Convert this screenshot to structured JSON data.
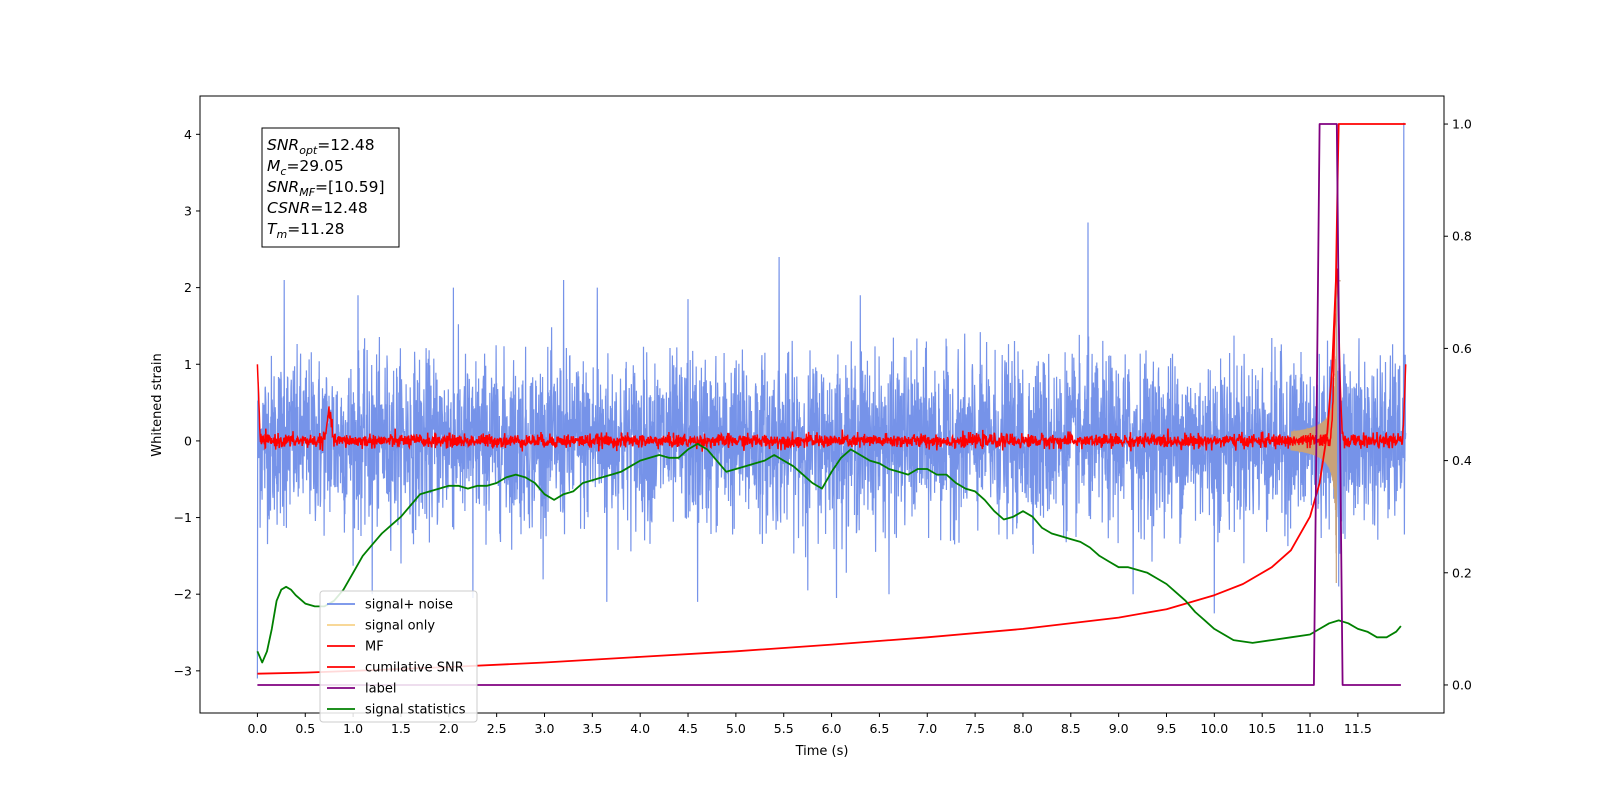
{
  "chart_data": {
    "type": "line",
    "xlabel": "Time (s)",
    "ylabel": "Whitened strain",
    "xlim": [
      -0.6,
      12.4
    ],
    "ylim": [
      -3.55,
      4.5
    ],
    "ylim_right": [
      -0.05,
      1.05
    ],
    "x_ticks": [
      0.0,
      0.5,
      1.0,
      1.5,
      2.0,
      2.5,
      3.0,
      3.5,
      4.0,
      4.5,
      5.0,
      5.5,
      6.0,
      6.5,
      7.0,
      7.5,
      8.0,
      8.5,
      9.0,
      9.5,
      10.0,
      10.5,
      11.0,
      11.5
    ],
    "x_tick_labels": [
      "0.0",
      "0.5",
      "1.0",
      "1.5",
      "2.0",
      "2.5",
      "3.0",
      "3.5",
      "4.0",
      "4.5",
      "5.0",
      "5.5",
      "6.0",
      "6.5",
      "7.0",
      "7.5",
      "8.0",
      "8.5",
      "9.0",
      "9.5",
      "10.0",
      "10.5",
      "11.0",
      "11.5"
    ],
    "y_ticks": [
      -3,
      -2,
      -1,
      0,
      1,
      2,
      3,
      4
    ],
    "y_tick_labels": [
      "−3",
      "−2",
      "−1",
      "0",
      "1",
      "2",
      "3",
      "4"
    ],
    "y_right_ticks": [
      0.0,
      0.2,
      0.4,
      0.6,
      0.8,
      1.0
    ],
    "y_right_tick_labels": [
      "0.0",
      "0.2",
      "0.4",
      "0.6",
      "0.8",
      "1.0"
    ],
    "legend_placement": "lower-left",
    "legend": [
      {
        "label": "signal+ noise",
        "color": "#6f8de8"
      },
      {
        "label": "signal only",
        "color": "#f7d38a"
      },
      {
        "label": "MF",
        "color": "#ff0000"
      },
      {
        "label": "cumilative SNR",
        "color": "#ff0000"
      },
      {
        "label": "label",
        "color": "#800080"
      },
      {
        "label": "signal statistics",
        "color": "#008000"
      }
    ],
    "annotation": {
      "lines": [
        {
          "sym": "SNR",
          "sub": "opt",
          "val": "=12.48"
        },
        {
          "sym": "M",
          "sub": "c",
          "val": "=29.05"
        },
        {
          "sym": "SNR",
          "sub": "MF",
          "val": "=[10.59]"
        },
        {
          "sym": "CSNR",
          "sub": "",
          "val": "=12.48"
        },
        {
          "sym": "T",
          "sub": "m",
          "val": "=11.28"
        }
      ]
    },
    "series": [
      {
        "name": "signal+ noise",
        "axis": "left",
        "color": "#6f8de8",
        "x_range": [
          0.0,
          12.0
        ],
        "envelope_upper": 1.1,
        "envelope_lower": -1.2,
        "peaks": [
          [
            0.28,
            2.1
          ],
          [
            1.05,
            1.9
          ],
          [
            2.05,
            2.0
          ],
          [
            3.2,
            2.1
          ],
          [
            3.55,
            2.0
          ],
          [
            4.5,
            1.85
          ],
          [
            5.45,
            2.4
          ],
          [
            6.3,
            1.9
          ],
          [
            8.68,
            2.85
          ],
          [
            11.28,
            2.25
          ],
          [
            11.98,
            4.15
          ]
        ],
        "troughs": [
          [
            0.0,
            -3.1
          ],
          [
            1.2,
            -2.0
          ],
          [
            2.25,
            -2.05
          ],
          [
            3.65,
            -2.1
          ],
          [
            4.6,
            -2.1
          ],
          [
            5.75,
            -1.95
          ],
          [
            6.05,
            -2.05
          ],
          [
            6.6,
            -2.0
          ],
          [
            9.15,
            -2.0
          ],
          [
            10.0,
            -2.25
          ],
          [
            11.3,
            -1.9
          ]
        ]
      },
      {
        "name": "signal only",
        "axis": "left",
        "color": "#f7d38a",
        "x_range": [
          10.8,
          11.32
        ],
        "peak_time": 11.28,
        "peak_amplitude": 2.2
      },
      {
        "name": "MF",
        "axis": "left",
        "color": "#ff0000",
        "x_range": [
          0.0,
          12.0
        ],
        "start_value": 1.0,
        "end_value": 1.0,
        "noise_band": [
          -0.1,
          0.1
        ],
        "bumps": [
          [
            0.75,
            0.5
          ],
          [
            11.28,
            2.2
          ]
        ]
      },
      {
        "name": "cumilative SNR",
        "axis": "right",
        "color": "#ff0000",
        "x": [
          0.0,
          0.5,
          1.0,
          2.0,
          3.0,
          4.0,
          5.0,
          6.0,
          7.0,
          8.0,
          9.0,
          9.5,
          10.0,
          10.3,
          10.6,
          10.8,
          11.0,
          11.1,
          11.18,
          11.23,
          11.27,
          11.29,
          11.3,
          12.0
        ],
        "y": [
          0.02,
          0.022,
          0.025,
          0.032,
          0.04,
          0.05,
          0.06,
          0.072,
          0.085,
          0.1,
          0.12,
          0.135,
          0.16,
          0.18,
          0.21,
          0.24,
          0.3,
          0.36,
          0.45,
          0.56,
          0.72,
          0.92,
          1.0,
          1.0
        ]
      },
      {
        "name": "label",
        "axis": "right",
        "color": "#800080",
        "x": [
          0.0,
          11.04,
          11.1,
          11.28,
          11.34,
          11.95
        ],
        "y": [
          0.0,
          0.0,
          1.0,
          1.0,
          0.0,
          0.0
        ]
      },
      {
        "name": "signal statistics",
        "axis": "right",
        "color": "#008000",
        "x": [
          0.0,
          0.05,
          0.1,
          0.15,
          0.2,
          0.25,
          0.3,
          0.35,
          0.4,
          0.5,
          0.6,
          0.7,
          0.8,
          0.9,
          1.0,
          1.1,
          1.2,
          1.3,
          1.4,
          1.5,
          1.6,
          1.7,
          1.8,
          1.9,
          2.0,
          2.1,
          2.2,
          2.3,
          2.4,
          2.5,
          2.6,
          2.7,
          2.8,
          2.9,
          3.0,
          3.1,
          3.2,
          3.3,
          3.4,
          3.5,
          3.6,
          3.7,
          3.8,
          3.9,
          4.0,
          4.1,
          4.2,
          4.3,
          4.4,
          4.5,
          4.6,
          4.7,
          4.8,
          4.9,
          5.0,
          5.1,
          5.2,
          5.3,
          5.4,
          5.5,
          5.6,
          5.7,
          5.8,
          5.9,
          6.0,
          6.1,
          6.2,
          6.3,
          6.4,
          6.5,
          6.6,
          6.7,
          6.8,
          6.9,
          7.0,
          7.1,
          7.2,
          7.3,
          7.4,
          7.5,
          7.6,
          7.7,
          7.8,
          7.9,
          8.0,
          8.1,
          8.2,
          8.3,
          8.4,
          8.5,
          8.6,
          8.7,
          8.8,
          8.9,
          9.0,
          9.1,
          9.2,
          9.3,
          9.4,
          9.5,
          9.6,
          9.7,
          9.8,
          9.9,
          10.0,
          10.2,
          10.4,
          10.6,
          10.8,
          11.0,
          11.1,
          11.2,
          11.3,
          11.4,
          11.5,
          11.6,
          11.7,
          11.8,
          11.9,
          11.95
        ],
        "y": [
          0.06,
          0.04,
          0.06,
          0.1,
          0.15,
          0.17,
          0.175,
          0.17,
          0.16,
          0.145,
          0.14,
          0.14,
          0.15,
          0.17,
          0.2,
          0.23,
          0.25,
          0.27,
          0.285,
          0.3,
          0.32,
          0.34,
          0.345,
          0.35,
          0.355,
          0.355,
          0.35,
          0.355,
          0.355,
          0.36,
          0.37,
          0.375,
          0.37,
          0.36,
          0.34,
          0.33,
          0.34,
          0.345,
          0.36,
          0.365,
          0.37,
          0.375,
          0.38,
          0.39,
          0.4,
          0.405,
          0.41,
          0.405,
          0.405,
          0.42,
          0.43,
          0.42,
          0.4,
          0.38,
          0.385,
          0.39,
          0.395,
          0.4,
          0.41,
          0.4,
          0.39,
          0.375,
          0.36,
          0.35,
          0.38,
          0.405,
          0.42,
          0.41,
          0.4,
          0.395,
          0.385,
          0.38,
          0.375,
          0.385,
          0.385,
          0.375,
          0.375,
          0.36,
          0.35,
          0.345,
          0.33,
          0.31,
          0.295,
          0.3,
          0.31,
          0.3,
          0.28,
          0.27,
          0.265,
          0.26,
          0.255,
          0.245,
          0.23,
          0.22,
          0.21,
          0.21,
          0.205,
          0.2,
          0.19,
          0.18,
          0.165,
          0.15,
          0.13,
          0.115,
          0.1,
          0.08,
          0.075,
          0.08,
          0.085,
          0.09,
          0.1,
          0.11,
          0.115,
          0.11,
          0.1,
          0.095,
          0.085,
          0.085,
          0.095,
          0.105
        ]
      }
    ]
  }
}
